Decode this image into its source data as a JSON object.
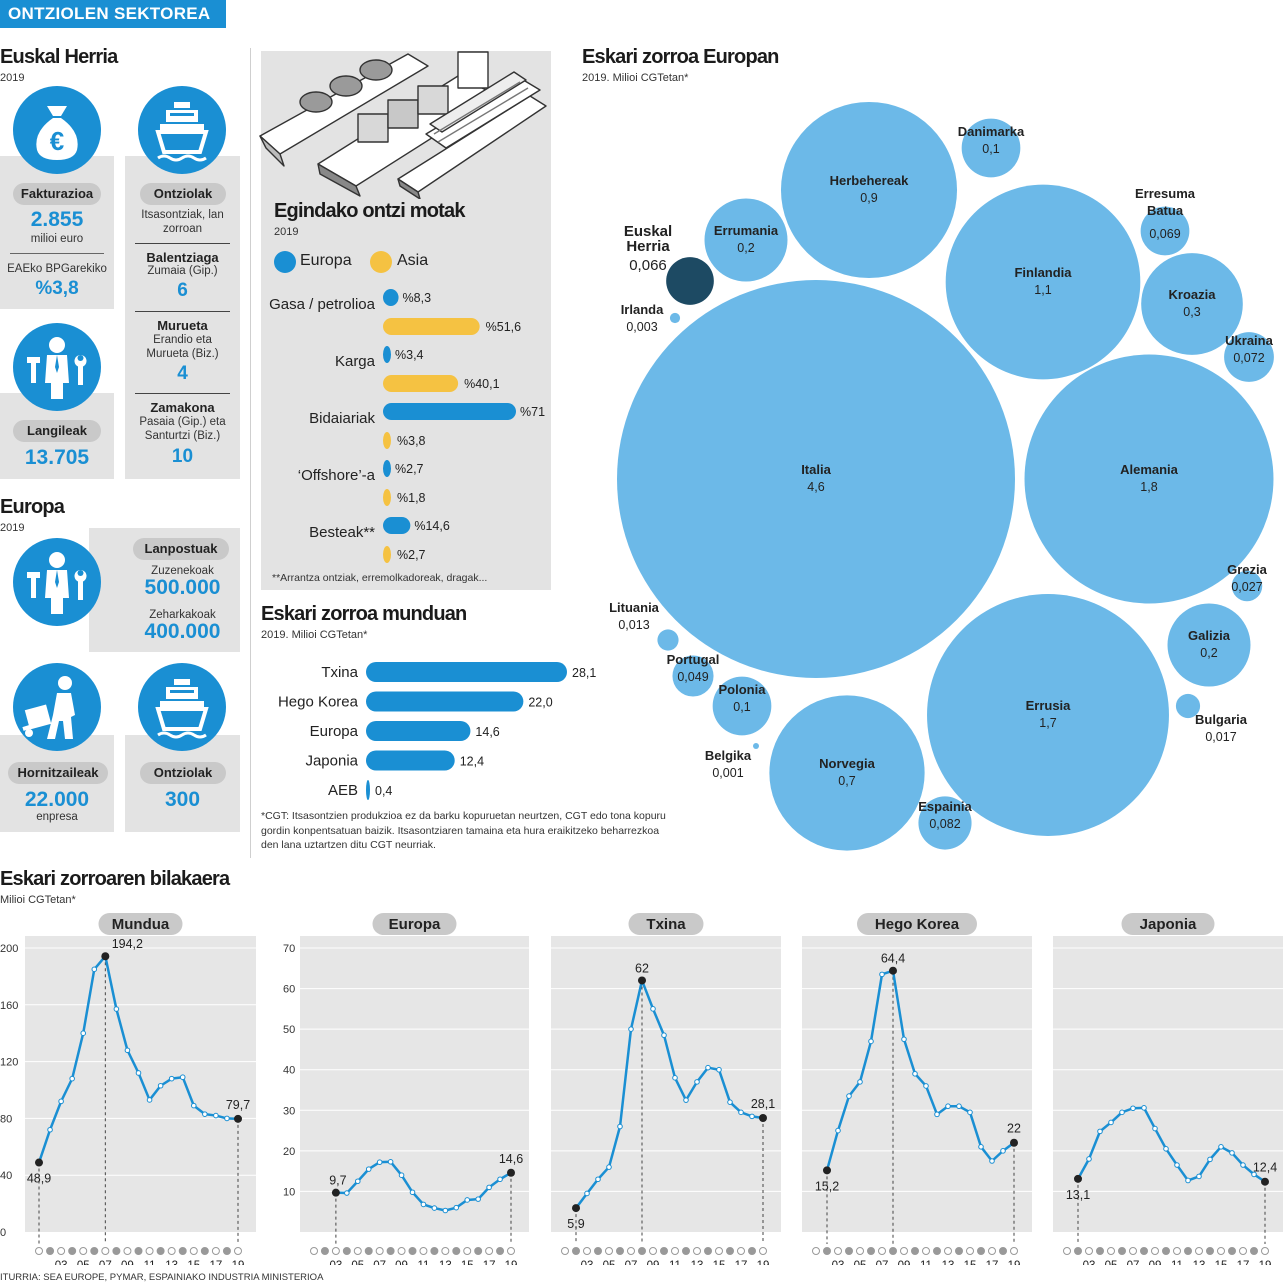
{
  "banner": "ONTZIOLEN SEKTOREA",
  "euskal_herria": {
    "title": "Euskal Herria",
    "year": "2019",
    "fakturazioa": {
      "label": "Fakturazioa",
      "value": "2.855",
      "unit": "milioi euro",
      "bpg_label": "EAEko BPGarekiko",
      "bpg_value": "%3,8"
    },
    "langileak": {
      "label": "Langileak",
      "value": "13.705"
    },
    "ontziolak": {
      "label": "Ontziolak",
      "desc": "Itsasontziak, lan zorroan",
      "items": [
        {
          "name": "Balentziaga",
          "place": "Zumaia (Gip.)",
          "value": "6"
        },
        {
          "name": "Murueta",
          "place": "Erandio eta Murueta (Biz.)",
          "value": "4"
        },
        {
          "name": "Zamakona",
          "place": "Pasaia (Gip.) eta Santurtzi (Biz.)",
          "value": "10"
        }
      ]
    }
  },
  "europa": {
    "title": "Europa",
    "year": "2019",
    "lanpostuak": {
      "label": "Lanpostuak",
      "direct_label": "Zuzenekoak",
      "direct_value": "500.000",
      "indirect_label": "Zeharkakoak",
      "indirect_value": "400.000"
    },
    "hornitzaileak": {
      "label": "Hornitzaileak",
      "value": "22.000",
      "unit": "enpresa"
    },
    "ontziolak": {
      "label": "Ontziolak",
      "value": "300"
    }
  },
  "ship_types": {
    "title": "Egindako ontzi motak",
    "year": "2019",
    "legend": [
      "Europa",
      "Asia"
    ],
    "colors": {
      "europa": "#1a8fd3",
      "asia": "#f5c242"
    },
    "footnote": "**Arrantza ontziak, erremolkadoreak, dragak...",
    "items": [
      {
        "label": "Gasa / petrolioa",
        "europa": 8.3,
        "asia": 51.6,
        "europa_text": "%8,3",
        "asia_text": "%51,6"
      },
      {
        "label": "Karga",
        "europa": 3.4,
        "asia": 40.1,
        "europa_text": "%3,4",
        "asia_text": "%40,1"
      },
      {
        "label": "Bidaiariak",
        "europa": 71,
        "asia": 3.8,
        "europa_text": "%71",
        "asia_text": "%3,8"
      },
      {
        "label": "‘Offshore’-a",
        "europa": 2.7,
        "asia": 1.8,
        "europa_text": "%2,7",
        "asia_text": "%1,8"
      },
      {
        "label": "Besteak**",
        "europa": 14.6,
        "asia": 2.7,
        "europa_text": "%14,6",
        "asia_text": "%2,7"
      }
    ]
  },
  "world_orders": {
    "title": "Eskari zorroa munduan",
    "sub": "2019. Milioi CGTetan*",
    "footnote": "*CGT: Itsasontzien produkzioa ez da barku kopuruetan neurtzen, CGT edo tona kopuru gordin konpentsatuan baizik. Itsasontziaren tamaina eta hura eraikitzeko beharrezkoa den lana uztartzen ditu CGT neurriak.",
    "items": [
      {
        "label": "Txina",
        "value": 28.1,
        "text": "28,1"
      },
      {
        "label": "Hego Korea",
        "value": 22.0,
        "text": "22,0"
      },
      {
        "label": "Europa",
        "value": 14.6,
        "text": "14,6"
      },
      {
        "label": "Japonia",
        "value": 12.4,
        "text": "12,4"
      },
      {
        "label": "AEB",
        "value": 0.4,
        "text": "0,4"
      }
    ]
  },
  "europe_orders": {
    "title": "Eskari zorroa Europan",
    "sub": "2019. Milioi CGTetan*",
    "highlight_color": "#1d4a63",
    "bubble_color": "#6cb9e8",
    "countries": [
      {
        "name": "Italia",
        "value": "4,6"
      },
      {
        "name": "Alemania",
        "value": "1,8"
      },
      {
        "name": "Errusia",
        "value": "1,7"
      },
      {
        "name": "Finlandia",
        "value": "1,1"
      },
      {
        "name": "Herbehereak",
        "value": "0,9"
      },
      {
        "name": "Norvegia",
        "value": "0,7"
      },
      {
        "name": "Kroazia",
        "value": "0,3"
      },
      {
        "name": "Errumania",
        "value": "0,2"
      },
      {
        "name": "Galizia",
        "value": "0,2"
      },
      {
        "name": "Danimarka",
        "value": "0,1"
      },
      {
        "name": "Polonia",
        "value": "0,1"
      },
      {
        "name": "Espainia",
        "value": "0,082"
      },
      {
        "name": "Ukraina",
        "value": "0,072"
      },
      {
        "name": "Erresuma Batua",
        "value": "0,069"
      },
      {
        "name": "Euskal Herria",
        "value": "0,066"
      },
      {
        "name": "Portugal",
        "value": "0,049"
      },
      {
        "name": "Grezia",
        "value": "0,027"
      },
      {
        "name": "Bulgaria",
        "value": "0,017"
      },
      {
        "name": "Lituania",
        "value": "0,013"
      },
      {
        "name": "Irlanda",
        "value": "0,003"
      },
      {
        "name": "Belgika",
        "value": "0,001"
      }
    ]
  },
  "evolution": {
    "title": "Eskari zorroaren bilakaera",
    "sub": "Milioi CGTetan*",
    "x_ticks": [
      "03",
      "05",
      "07",
      "09",
      "11",
      "13",
      "15",
      "17",
      "19"
    ],
    "x_years": [
      2001,
      2002,
      2003,
      2004,
      2005,
      2006,
      2007,
      2008,
      2009,
      2010,
      2011,
      2012,
      2013,
      2014,
      2015,
      2016,
      2017,
      2018,
      2019
    ],
    "source": "ITURRIA: SEA EUROPE, PYMAR, ESPAINIAKO INDUSTRIA MINISTERIOA",
    "charts": [
      {
        "title": "Mundua",
        "ylim": [
          0,
          200
        ],
        "y_ticks": [
          "0",
          "40",
          "80",
          "120",
          "160",
          "200"
        ],
        "values": [
          48.9,
          72,
          92,
          108,
          140,
          185,
          194.2,
          157,
          128,
          112,
          93,
          103,
          108,
          109,
          89,
          83,
          82,
          80,
          79.7
        ],
        "labels": [
          {
            "index": 0,
            "text": "48,9"
          },
          {
            "index": 6,
            "text": "194,2"
          },
          {
            "index": 18,
            "text": "79,7"
          }
        ]
      },
      {
        "title": "Europa",
        "ylim": [
          0,
          70
        ],
        "y_ticks": [
          "10",
          "20",
          "30",
          "40",
          "50",
          "60",
          "70"
        ],
        "values": [
          9.7,
          9.6,
          12.5,
          15.5,
          17.2,
          17.3,
          14,
          9.8,
          6.8,
          5.9,
          5.3,
          6,
          7.9,
          8.1,
          11,
          13,
          14.6
        ],
        "labels": [
          {
            "index": 0,
            "text": "9,7"
          },
          {
            "index": 16,
            "text": "14,6"
          }
        ]
      },
      {
        "title": "Txina",
        "ylim": [
          0,
          70
        ],
        "y_ticks": [],
        "values": [
          5.9,
          9.5,
          13,
          16,
          26,
          50,
          62,
          55,
          48.5,
          38,
          32.5,
          37,
          40.5,
          40,
          32,
          29.5,
          28.5,
          28.1
        ],
        "labels": [
          {
            "index": 0,
            "text": "5,9"
          },
          {
            "index": 6,
            "text": "62"
          },
          {
            "index": 17,
            "text": "28,1"
          }
        ]
      },
      {
        "title": "Hego Korea",
        "ylim": [
          0,
          70
        ],
        "y_ticks": [],
        "values": [
          15.2,
          25,
          33.5,
          37,
          47,
          63.5,
          64.4,
          47.5,
          39,
          36,
          29,
          31,
          31,
          29.5,
          21,
          17.5,
          20,
          22
        ],
        "labels": [
          {
            "index": 0,
            "text": "15,2"
          },
          {
            "index": 6,
            "text": "64,4"
          },
          {
            "index": 17,
            "text": "22"
          }
        ]
      },
      {
        "title": "Japonia",
        "ylim": [
          0,
          70
        ],
        "y_ticks": [],
        "values": [
          13.1,
          18,
          24.8,
          27,
          29.5,
          30.5,
          30.6,
          25.5,
          20.5,
          16.5,
          12.7,
          13.7,
          17.9,
          21,
          19.5,
          16.5,
          14.2,
          12.4
        ],
        "labels": [
          {
            "index": 0,
            "text": "13,1"
          },
          {
            "index": 17,
            "text": "12,4"
          }
        ]
      }
    ]
  }
}
